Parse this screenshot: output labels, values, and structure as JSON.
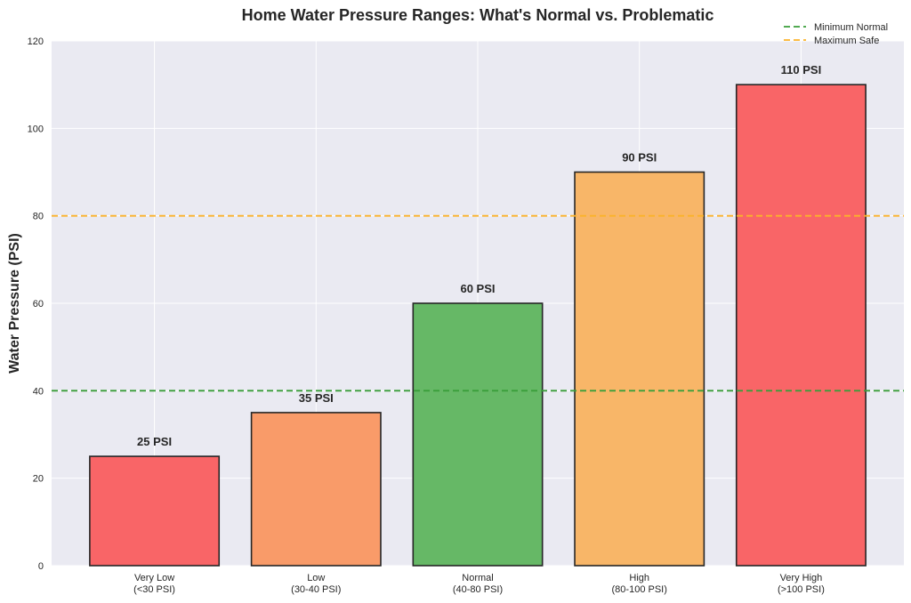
{
  "chart_data": {
    "type": "bar",
    "title": "Home Water Pressure Ranges: What's Normal vs. Problematic",
    "xlabel": "",
    "ylabel": "Water Pressure (PSI)",
    "ylim": [
      0,
      120
    ],
    "yticks": [
      0,
      20,
      40,
      60,
      80,
      100,
      120
    ],
    "grid": true,
    "categories": [
      [
        "Very Low",
        "(<30 PSI)"
      ],
      [
        "Low",
        "(30-40 PSI)"
      ],
      [
        "Normal",
        "(40-80 PSI)"
      ],
      [
        "High",
        "(80-100 PSI)"
      ],
      [
        "Very High",
        "(>100 PSI)"
      ]
    ],
    "values": [
      25,
      35,
      60,
      90,
      110
    ],
    "data_labels": [
      "25 PSI",
      "35 PSI",
      "60 PSI",
      "90 PSI",
      "110 PSI"
    ],
    "colors": [
      "#f96567",
      "#f99b69",
      "#66b866",
      "#f8b668",
      "#f96567"
    ],
    "reference_lines": [
      {
        "name": "Minimum Normal",
        "value": 40,
        "color": "#3a9e3a",
        "style": "dashed"
      },
      {
        "name": "Maximum Safe",
        "value": 80,
        "color": "#fbb22a",
        "style": "dashed"
      }
    ],
    "legend_position": "top-right"
  }
}
